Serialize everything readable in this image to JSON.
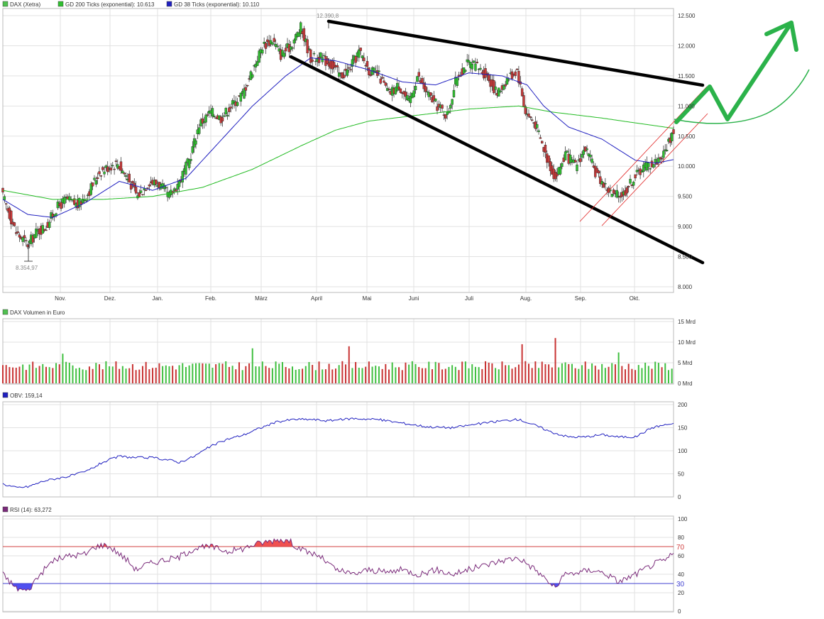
{
  "chart_data": [
    {
      "type": "candlestick",
      "legend": [
        {
          "label": "DAX (Xetra)",
          "color": "#50c050"
        },
        {
          "label": "GD 200 Ticks (exponential): 10.613",
          "color": "#2fbf2f"
        },
        {
          "label": "GD 38 Ticks (exponential): 10.110",
          "color": "#2020c0"
        }
      ],
      "x_ticks": [
        "Nov.",
        "Dez.",
        "Jan.",
        "Feb.",
        "März",
        "April",
        "Mai",
        "Juni",
        "Juli",
        "Aug.",
        "Sep.",
        "Okt."
      ],
      "y_ticks": [
        "12.500",
        "12.000",
        "11.500",
        "11.000",
        "10.500",
        "10.000",
        "9.500",
        "9.000",
        "8.500",
        "8.000"
      ],
      "ylim": [
        7.9,
        12.6
      ],
      "annotations": [
        "12.390,8",
        "8.354,97"
      ],
      "close_anchors": [
        [
          0,
          9.5
        ],
        [
          8,
          8.9
        ],
        [
          15,
          8.7
        ],
        [
          20,
          8.9
        ],
        [
          26,
          9.0
        ],
        [
          32,
          9.3
        ],
        [
          38,
          9.45
        ],
        [
          45,
          9.35
        ],
        [
          51,
          9.55
        ],
        [
          58,
          9.9
        ],
        [
          64,
          10.0
        ],
        [
          69,
          10.05
        ],
        [
          75,
          9.8
        ],
        [
          81,
          9.5
        ],
        [
          88,
          9.75
        ],
        [
          94,
          9.7
        ],
        [
          100,
          9.5
        ],
        [
          106,
          9.75
        ],
        [
          112,
          10.1
        ],
        [
          118,
          10.7
        ],
        [
          125,
          10.9
        ],
        [
          131,
          10.8
        ],
        [
          137,
          11.0
        ],
        [
          144,
          11.2
        ],
        [
          150,
          11.6
        ],
        [
          156,
          12.0
        ],
        [
          162,
          12.1
        ],
        [
          167,
          11.85
        ],
        [
          173,
          12.0
        ],
        [
          179,
          12.3
        ],
        [
          185,
          11.8
        ],
        [
          191,
          11.8
        ],
        [
          197,
          11.7
        ],
        [
          203,
          11.5
        ],
        [
          208,
          11.6
        ],
        [
          214,
          11.9
        ],
        [
          220,
          11.6
        ],
        [
          226,
          11.5
        ],
        [
          232,
          11.2
        ],
        [
          238,
          11.35
        ],
        [
          244,
          11.05
        ],
        [
          249,
          11.5
        ],
        [
          255,
          11.2
        ],
        [
          261,
          11.0
        ],
        [
          267,
          10.85
        ],
        [
          273,
          11.5
        ],
        [
          279,
          11.7
        ],
        [
          285,
          11.65
        ],
        [
          291,
          11.5
        ],
        [
          297,
          11.2
        ],
        [
          303,
          11.45
        ],
        [
          309,
          11.6
        ],
        [
          314,
          10.9
        ],
        [
          320,
          10.7
        ],
        [
          326,
          10.2
        ],
        [
          332,
          9.8
        ],
        [
          338,
          10.2
        ],
        [
          344,
          10.0
        ],
        [
          350,
          10.3
        ],
        [
          356,
          9.9
        ],
        [
          361,
          9.7
        ],
        [
          367,
          9.5
        ],
        [
          373,
          9.55
        ],
        [
          379,
          9.8
        ],
        [
          385,
          10.0
        ],
        [
          391,
          10.05
        ],
        [
          397,
          10.2
        ],
        [
          403,
          10.6
        ]
      ],
      "gd200_anchors": [
        [
          0,
          9.6
        ],
        [
          30,
          9.45
        ],
        [
          60,
          9.45
        ],
        [
          90,
          9.5
        ],
        [
          120,
          9.65
        ],
        [
          150,
          9.95
        ],
        [
          180,
          10.35
        ],
        [
          200,
          10.6
        ],
        [
          220,
          10.75
        ],
        [
          250,
          10.85
        ],
        [
          280,
          10.95
        ],
        [
          310,
          11.0
        ],
        [
          330,
          10.9
        ],
        [
          360,
          10.8
        ],
        [
          380,
          10.72
        ],
        [
          403,
          10.63
        ]
      ],
      "gd38_anchors": [
        [
          0,
          9.45
        ],
        [
          15,
          9.2
        ],
        [
          30,
          9.15
        ],
        [
          50,
          9.4
        ],
        [
          70,
          9.75
        ],
        [
          90,
          9.6
        ],
        [
          110,
          9.8
        ],
        [
          130,
          10.4
        ],
        [
          150,
          11.0
        ],
        [
          170,
          11.5
        ],
        [
          185,
          11.8
        ],
        [
          200,
          11.75
        ],
        [
          220,
          11.6
        ],
        [
          240,
          11.4
        ],
        [
          260,
          11.35
        ],
        [
          280,
          11.55
        ],
        [
          300,
          11.5
        ],
        [
          315,
          11.35
        ],
        [
          325,
          11.0
        ],
        [
          340,
          10.65
        ],
        [
          360,
          10.45
        ],
        [
          380,
          10.1
        ],
        [
          392,
          10.05
        ],
        [
          403,
          10.11
        ]
      ]
    },
    {
      "type": "bar",
      "legend": [
        {
          "label": "DAX Volumen in Euro",
          "color": "#50c050"
        }
      ],
      "y_ticks": [
        "15 Mrd",
        "10 Mrd",
        "5 Mrd",
        "0 Mrd"
      ],
      "ylim": [
        0,
        15
      ],
      "up_color": "#3fbf3f",
      "down_color": "#c83232"
    },
    {
      "type": "line",
      "legend": [
        {
          "label": "OBV: 159,14",
          "color": "#2020c0"
        }
      ],
      "y_ticks": [
        "200",
        "150",
        "100",
        "50",
        "0"
      ],
      "ylim": [
        0,
        200
      ],
      "anchors": [
        [
          0,
          28
        ],
        [
          8,
          20
        ],
        [
          15,
          22
        ],
        [
          25,
          35
        ],
        [
          40,
          45
        ],
        [
          50,
          55
        ],
        [
          60,
          75
        ],
        [
          70,
          88
        ],
        [
          80,
          85
        ],
        [
          90,
          85
        ],
        [
          100,
          80
        ],
        [
          106,
          75
        ],
        [
          115,
          88
        ],
        [
          125,
          110
        ],
        [
          135,
          125
        ],
        [
          145,
          135
        ],
        [
          155,
          150
        ],
        [
          165,
          163
        ],
        [
          175,
          168
        ],
        [
          185,
          168
        ],
        [
          195,
          165
        ],
        [
          210,
          170
        ],
        [
          225,
          168
        ],
        [
          240,
          160
        ],
        [
          255,
          152
        ],
        [
          270,
          150
        ],
        [
          285,
          158
        ],
        [
          300,
          165
        ],
        [
          310,
          168
        ],
        [
          320,
          155
        ],
        [
          330,
          140
        ],
        [
          340,
          130
        ],
        [
          350,
          130
        ],
        [
          360,
          135
        ],
        [
          370,
          130
        ],
        [
          380,
          130
        ],
        [
          390,
          150
        ],
        [
          396,
          155
        ],
        [
          403,
          159
        ]
      ]
    },
    {
      "type": "line",
      "legend": [
        {
          "label": "RSI (14): 63,272",
          "color": "#7a2a7a"
        }
      ],
      "y_ticks": [
        "100",
        "80",
        "60",
        "40",
        "20",
        "0"
      ],
      "ylim": [
        0,
        100
      ],
      "ref_lines": [
        {
          "value": 70,
          "label": "70",
          "color": "#d04040"
        },
        {
          "value": 30,
          "label": "30",
          "color": "#4040d0"
        }
      ],
      "anchors": [
        [
          0,
          40
        ],
        [
          8,
          25
        ],
        [
          15,
          22
        ],
        [
          20,
          35
        ],
        [
          30,
          55
        ],
        [
          40,
          60
        ],
        [
          50,
          62
        ],
        [
          55,
          70
        ],
        [
          62,
          72
        ],
        [
          68,
          65
        ],
        [
          75,
          55
        ],
        [
          80,
          45
        ],
        [
          85,
          50
        ],
        [
          95,
          55
        ],
        [
          105,
          58
        ],
        [
          115,
          68
        ],
        [
          125,
          70
        ],
        [
          135,
          65
        ],
        [
          145,
          68
        ],
        [
          150,
          72
        ],
        [
          158,
          75
        ],
        [
          166,
          78
        ],
        [
          172,
          76
        ],
        [
          180,
          66
        ],
        [
          190,
          60
        ],
        [
          200,
          45
        ],
        [
          210,
          40
        ],
        [
          220,
          45
        ],
        [
          230,
          42
        ],
        [
          240,
          45
        ],
        [
          250,
          40
        ],
        [
          260,
          45
        ],
        [
          270,
          40
        ],
        [
          280,
          45
        ],
        [
          290,
          50
        ],
        [
          300,
          55
        ],
        [
          310,
          58
        ],
        [
          320,
          45
        ],
        [
          326,
          35
        ],
        [
          332,
          25
        ],
        [
          338,
          40
        ],
        [
          345,
          42
        ],
        [
          355,
          45
        ],
        [
          363,
          40
        ],
        [
          370,
          32
        ],
        [
          378,
          38
        ],
        [
          385,
          45
        ],
        [
          392,
          52
        ],
        [
          398,
          55
        ],
        [
          403,
          63
        ]
      ]
    }
  ]
}
